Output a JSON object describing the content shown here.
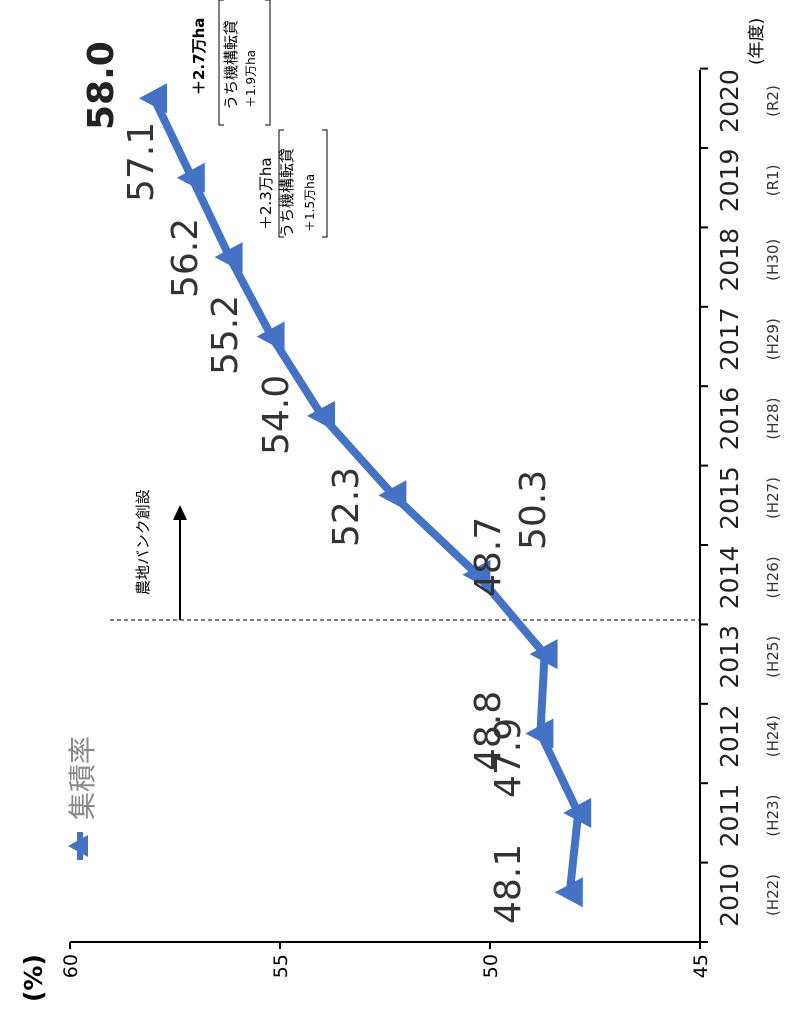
{
  "chart_data": {
    "type": "line",
    "y_unit_label": "(%)",
    "x_unit_label": "(年度)",
    "x": [
      "2010",
      "2011",
      "2012",
      "2013",
      "2014",
      "2015",
      "2016",
      "2017",
      "2018",
      "2019",
      "2020"
    ],
    "x_era": [
      "(H22)",
      "(H23)",
      "(H24)",
      "(H25)",
      "(H26)",
      "(H27)",
      "(H28)",
      "(H29)",
      "(H30)",
      "(R1)",
      "(R2)"
    ],
    "series": [
      {
        "name": "集積率",
        "values": [
          48.1,
          47.9,
          48.8,
          48.7,
          50.3,
          52.3,
          54.0,
          55.2,
          56.2,
          57.1,
          58.0
        ],
        "labels": [
          "48.1",
          "47.9",
          "48.8",
          "48.7",
          "50.3",
          "52.3",
          "54.0",
          "55.2",
          "56.2",
          "57.1",
          "58.0"
        ],
        "color": "#4472c4"
      }
    ],
    "ylim": [
      45,
      60
    ],
    "yticks": [
      "45",
      "50",
      "55",
      "60"
    ],
    "legend": "top-left",
    "annotations": {
      "bank": {
        "text": "農地バンク創設"
      },
      "ann2019": {
        "main": "＋2.3万ha",
        "sub1": "うち機構転貸",
        "sub2": "＋1.5万ha"
      },
      "ann2020": {
        "main": "＋2.7万ha",
        "sub1": "うち機構転貸",
        "sub2": "＋1.9万ha"
      }
    }
  }
}
